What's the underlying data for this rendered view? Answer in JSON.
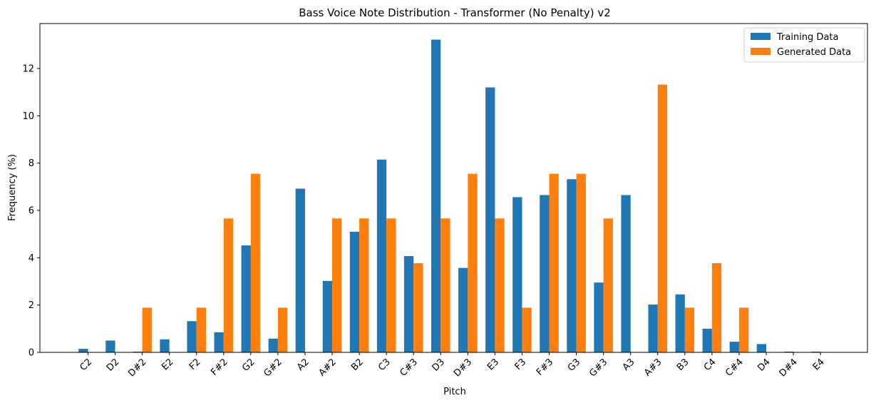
{
  "chart_data": {
    "type": "bar",
    "title": "Bass Voice Note Distribution - Transformer (No Penalty) v2",
    "xlabel": "Pitch",
    "ylabel": "Frequency (%)",
    "ylim": [
      0,
      13.9
    ],
    "yticks": [
      0,
      2,
      4,
      6,
      8,
      10,
      12
    ],
    "legend_position": "top-right",
    "categories": [
      "C2",
      "D2",
      "D#2",
      "E2",
      "F2",
      "F#2",
      "G2",
      "G#2",
      "A2",
      "A#2",
      "B2",
      "C3",
      "C#3",
      "D3",
      "D#3",
      "E3",
      "F3",
      "F#3",
      "G3",
      "G#3",
      "A3",
      "A#3",
      "B3",
      "C4",
      "C#4",
      "D4",
      "D#4",
      "E4"
    ],
    "series": [
      {
        "name": "Training Data",
        "color": "#1f77b4",
        "values": [
          0.15,
          0.5,
          0.03,
          0.55,
          1.32,
          0.85,
          4.52,
          0.58,
          6.92,
          3.02,
          5.1,
          8.15,
          4.07,
          13.22,
          3.57,
          11.2,
          6.56,
          6.65,
          7.32,
          2.95,
          6.65,
          2.02,
          2.45,
          1.0,
          0.45,
          0.35,
          0.03,
          0.03
        ]
      },
      {
        "name": "Generated Data",
        "color": "#ff7f0e",
        "values": [
          0,
          0,
          1.89,
          0,
          1.89,
          5.66,
          7.55,
          1.89,
          0,
          5.66,
          5.66,
          5.66,
          3.77,
          5.66,
          7.55,
          5.66,
          1.89,
          7.55,
          7.55,
          5.66,
          0,
          11.32,
          1.89,
          3.77,
          1.89,
          0,
          0,
          0
        ]
      }
    ]
  }
}
